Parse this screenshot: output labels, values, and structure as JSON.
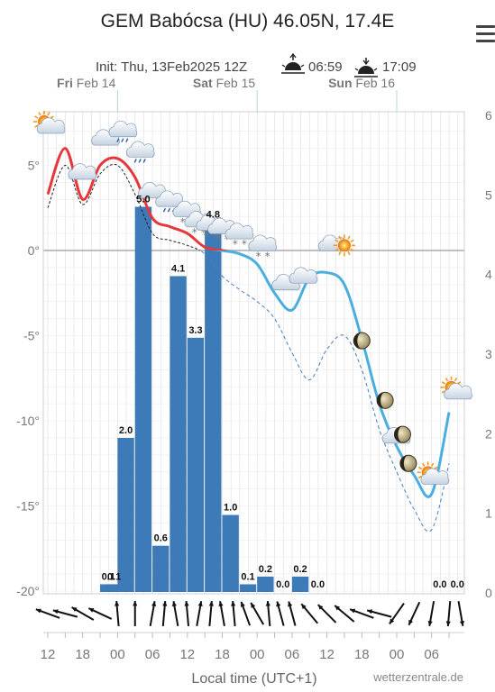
{
  "header": {
    "title": "GEM Babócsa (HU) 46.05N, 17.4E",
    "init": "Init: Thu, 13Feb2025 12Z",
    "sunrise": "06:59",
    "sunset": "17:09",
    "sunrise_icon": "sunrise-icon",
    "sunset_icon": "sunset-icon",
    "menu_icon": "hamburger-menu-icon"
  },
  "days": [
    {
      "bold": "Fri",
      "rest": " Feb 14",
      "at": "2025-02-14 00:00"
    },
    {
      "bold": "Sat",
      "rest": " Feb 15",
      "at": "2025-02-15 00:00"
    },
    {
      "bold": "Sun",
      "rest": " Feb 16",
      "at": "2025-02-16 00:00"
    }
  ],
  "footer": {
    "xlabel": "Local time (UTC+1)",
    "credit": "wetterzentrale.de"
  },
  "colors": {
    "bars": "#3d7ab8",
    "temp_line": "#4aaee0",
    "temp_line_warm": "#e8373b",
    "dewpoint_line": "#4a7bc4",
    "grid": "#dddddd",
    "zero_line": "#aaaaaa"
  },
  "chart_data": {
    "type": "bar+line",
    "x_start": "2025-02-13 12:00",
    "x_end": "2025-02-16 11:00",
    "xticks": [
      {
        "label": "12",
        "at": "2025-02-13 12:00"
      },
      {
        "label": "18",
        "at": "2025-02-13 18:00"
      },
      {
        "label": "00",
        "at": "2025-02-14 00:00"
      },
      {
        "label": "06",
        "at": "2025-02-14 06:00"
      },
      {
        "label": "12",
        "at": "2025-02-14 12:00"
      },
      {
        "label": "18",
        "at": "2025-02-14 18:00"
      },
      {
        "label": "00",
        "at": "2025-02-15 00:00"
      },
      {
        "label": "06",
        "at": "2025-02-15 06:00"
      },
      {
        "label": "12",
        "at": "2025-02-15 12:00"
      },
      {
        "label": "18",
        "at": "2025-02-15 18:00"
      },
      {
        "label": "00",
        "at": "2025-02-16 00:00"
      },
      {
        "label": "06",
        "at": "2025-02-16 06:00"
      }
    ],
    "y_left": {
      "ticks": [
        "5°",
        "0°",
        "-5°",
        "-10°",
        "-15°",
        "-20°"
      ],
      "values": [
        5,
        0,
        -5,
        -10,
        -15,
        -20
      ],
      "range": [
        -20,
        8
      ]
    },
    "y_right": {
      "ticks": [
        "6",
        "5",
        "4",
        "3",
        "2",
        "1",
        "0"
      ]
    },
    "precipitation": [
      {
        "start": "2025-02-13 21:00",
        "value": 0.1,
        "label": "0.1"
      },
      {
        "start": "2025-02-13 22:00",
        "value": 0.1,
        "label": "0.1"
      },
      {
        "start": "2025-02-14 00:00",
        "value": 2.0,
        "label": "2.0"
      },
      {
        "start": "2025-02-14 03:00",
        "value": 5.0,
        "label": "5.0"
      },
      {
        "start": "2025-02-14 06:00",
        "value": 0.6,
        "label": "0.6"
      },
      {
        "start": "2025-02-14 09:00",
        "value": 4.1,
        "label": "4.1"
      },
      {
        "start": "2025-02-14 12:00",
        "value": 3.3,
        "label": "3.3"
      },
      {
        "start": "2025-02-14 15:00",
        "value": 4.8,
        "label": "4.8"
      },
      {
        "start": "2025-02-14 18:00",
        "value": 1.0,
        "label": "1.0"
      },
      {
        "start": "2025-02-14 21:00",
        "value": 0.1,
        "label": "0.1"
      },
      {
        "start": "2025-02-15 00:00",
        "value": 0.2,
        "label": "0.2"
      },
      {
        "start": "2025-02-15 03:00",
        "value": 0.0,
        "label": "0.0"
      },
      {
        "start": "2025-02-15 06:00",
        "value": 0.2,
        "label": "0.2"
      },
      {
        "start": "2025-02-15 09:00",
        "value": 0.0,
        "label": "0.0"
      },
      {
        "start": "2025-02-16 06:00",
        "value": 0.0,
        "label": "0.0"
      },
      {
        "start": "2025-02-16 09:00",
        "value": 0.0,
        "label": "0.0"
      }
    ],
    "temperature": [
      {
        "t": "2025-02-13 12:00",
        "v": 3.3
      },
      {
        "t": "2025-02-13 15:00",
        "v": 6.0
      },
      {
        "t": "2025-02-13 18:00",
        "v": 3.0
      },
      {
        "t": "2025-02-13 21:00",
        "v": 5.0
      },
      {
        "t": "2025-02-14 00:00",
        "v": 5.4
      },
      {
        "t": "2025-02-14 03:00",
        "v": 4.3
      },
      {
        "t": "2025-02-14 06:00",
        "v": 1.9
      },
      {
        "t": "2025-02-14 09:00",
        "v": 1.4
      },
      {
        "t": "2025-02-14 12:00",
        "v": 1.0
      },
      {
        "t": "2025-02-14 15:00",
        "v": 0.2
      },
      {
        "t": "2025-02-14 18:00",
        "v": 0.0
      },
      {
        "t": "2025-02-14 21:00",
        "v": -0.2
      },
      {
        "t": "2025-02-15 00:00",
        "v": -0.8
      },
      {
        "t": "2025-02-15 03:00",
        "v": -2.5
      },
      {
        "t": "2025-02-15 06:00",
        "v": -3.5
      },
      {
        "t": "2025-02-15 09:00",
        "v": -1.6
      },
      {
        "t": "2025-02-15 12:00",
        "v": -1.3
      },
      {
        "t": "2025-02-15 15:00",
        "v": -2.0
      },
      {
        "t": "2025-02-15 18:00",
        "v": -5.2
      },
      {
        "t": "2025-02-15 21:00",
        "v": -9.0
      },
      {
        "t": "2025-02-16 00:00",
        "v": -11.5
      },
      {
        "t": "2025-02-16 03:00",
        "v": -13.2
      },
      {
        "t": "2025-02-16 06:00",
        "v": -14.3
      },
      {
        "t": "2025-02-16 09:00",
        "v": -9.5
      }
    ],
    "dewpoint": [
      {
        "t": "2025-02-13 12:00",
        "v": 2.5
      },
      {
        "t": "2025-02-13 15:00",
        "v": 5.0
      },
      {
        "t": "2025-02-13 18:00",
        "v": 2.7
      },
      {
        "t": "2025-02-13 21:00",
        "v": 4.5
      },
      {
        "t": "2025-02-14 00:00",
        "v": 5.0
      },
      {
        "t": "2025-02-14 03:00",
        "v": 3.3
      },
      {
        "t": "2025-02-14 06:00",
        "v": 1.0
      },
      {
        "t": "2025-02-14 09:00",
        "v": 0.6
      },
      {
        "t": "2025-02-14 12:00",
        "v": 0.3
      },
      {
        "t": "2025-02-14 15:00",
        "v": -0.2
      },
      {
        "t": "2025-02-14 18:00",
        "v": -1.5
      },
      {
        "t": "2025-02-14 21:00",
        "v": -2.3
      },
      {
        "t": "2025-02-15 00:00",
        "v": -3.0
      },
      {
        "t": "2025-02-15 03:00",
        "v": -4.0
      },
      {
        "t": "2025-02-15 06:00",
        "v": -6.0
      },
      {
        "t": "2025-02-15 09:00",
        "v": -7.6
      },
      {
        "t": "2025-02-15 12:00",
        "v": -5.8
      },
      {
        "t": "2025-02-15 15:00",
        "v": -5.0
      },
      {
        "t": "2025-02-15 18:00",
        "v": -7.0
      },
      {
        "t": "2025-02-15 21:00",
        "v": -10.5
      },
      {
        "t": "2025-02-16 00:00",
        "v": -13.0
      },
      {
        "t": "2025-02-16 03:00",
        "v": -15.2
      },
      {
        "t": "2025-02-16 06:00",
        "v": -16.4
      },
      {
        "t": "2025-02-16 09:00",
        "v": -12.5
      }
    ],
    "weather_icons": [
      {
        "t": "2025-02-13 12:00",
        "v": 7.3,
        "icon": "sun-cloud-icon"
      },
      {
        "t": "2025-02-13 18:00",
        "v": 4.5,
        "icon": "cloud-icon"
      },
      {
        "t": "2025-02-13 22:00",
        "v": 6.5,
        "icon": "cloud-icon"
      },
      {
        "t": "2025-02-14 01:00",
        "v": 7.0,
        "icon": "rain-cloud-icon"
      },
      {
        "t": "2025-02-14 04:00",
        "v": 5.8,
        "icon": "rain-cloud-icon"
      },
      {
        "t": "2025-02-14 06:00",
        "v": 3.4,
        "icon": "cloud-icon"
      },
      {
        "t": "2025-02-14 09:00",
        "v": 2.9,
        "icon": "rain-cloud-icon"
      },
      {
        "t": "2025-02-14 12:00",
        "v": 2.3,
        "icon": "snow-cloud-icon"
      },
      {
        "t": "2025-02-14 14:00",
        "v": 1.7,
        "icon": "snow-cloud-icon"
      },
      {
        "t": "2025-02-14 16:00",
        "v": 1.5,
        "icon": "snow-cloud-icon"
      },
      {
        "t": "2025-02-14 18:00",
        "v": 1.3,
        "icon": "snow-cloud-icon"
      },
      {
        "t": "2025-02-14 21:00",
        "v": 1.0,
        "icon": "snow-cloud-icon"
      },
      {
        "t": "2025-02-15 01:00",
        "v": 0.3,
        "icon": "snow-cloud-icon"
      },
      {
        "t": "2025-02-15 05:00",
        "v": -2.0,
        "icon": "cloud-icon"
      },
      {
        "t": "2025-02-15 08:00",
        "v": -1.6,
        "icon": "cloud-icon"
      },
      {
        "t": "2025-02-15 13:00",
        "v": 0.3,
        "icon": "cloud-icon"
      },
      {
        "t": "2025-02-15 15:00",
        "v": 0.3,
        "icon": "sun-icon"
      },
      {
        "t": "2025-02-15 18:00",
        "v": -5.3,
        "icon": "moon-icon"
      },
      {
        "t": "2025-02-15 22:00",
        "v": -8.8,
        "icon": "moon-icon"
      },
      {
        "t": "2025-02-16 00:00",
        "v": -11.0,
        "icon": "cloud-icon"
      },
      {
        "t": "2025-02-16 01:00",
        "v": -10.8,
        "icon": "moon-icon"
      },
      {
        "t": "2025-02-16 02:00",
        "v": -12.5,
        "icon": "moon-icon"
      },
      {
        "t": "2025-02-16 06:00",
        "v": -13.3,
        "icon": "sun-cloud-icon"
      },
      {
        "t": "2025-02-16 10:00",
        "v": -8.3,
        "icon": "sun-cloud-icon"
      }
    ],
    "wind_directions_deg": [
      {
        "t": "2025-02-13 12:00",
        "deg": 110
      },
      {
        "t": "2025-02-13 15:00",
        "deg": 105
      },
      {
        "t": "2025-02-13 18:00",
        "deg": 120
      },
      {
        "t": "2025-02-13 21:00",
        "deg": 115
      },
      {
        "t": "2025-02-14 00:00",
        "deg": 175
      },
      {
        "t": "2025-02-14 03:00",
        "deg": 180
      },
      {
        "t": "2025-02-14 06:00",
        "deg": 190
      },
      {
        "t": "2025-02-14 08:00",
        "deg": 185
      },
      {
        "t": "2025-02-14 10:00",
        "deg": 170
      },
      {
        "t": "2025-02-14 12:00",
        "deg": 175
      },
      {
        "t": "2025-02-14 14:00",
        "deg": 190
      },
      {
        "t": "2025-02-14 16:00",
        "deg": 185
      },
      {
        "t": "2025-02-14 18:00",
        "deg": 170
      },
      {
        "t": "2025-02-14 20:00",
        "deg": 175
      },
      {
        "t": "2025-02-14 22:00",
        "deg": 160
      },
      {
        "t": "2025-02-15 00:00",
        "deg": 150
      },
      {
        "t": "2025-02-15 02:00",
        "deg": 175
      },
      {
        "t": "2025-02-15 04:00",
        "deg": 165
      },
      {
        "t": "2025-02-15 06:00",
        "deg": 165
      },
      {
        "t": "2025-02-15 09:00",
        "deg": 140
      },
      {
        "t": "2025-02-15 12:00",
        "deg": 135
      },
      {
        "t": "2025-02-15 15:00",
        "deg": 130
      },
      {
        "t": "2025-02-15 18:00",
        "deg": 110
      },
      {
        "t": "2025-02-15 21:00",
        "deg": 105
      },
      {
        "t": "2025-02-16 00:00",
        "deg": 35
      },
      {
        "t": "2025-02-16 03:00",
        "deg": 25
      },
      {
        "t": "2025-02-16 06:00",
        "deg": 10
      },
      {
        "t": "2025-02-16 09:00",
        "deg": 5
      },
      {
        "t": "2025-02-16 11:00",
        "deg": 350
      }
    ]
  }
}
